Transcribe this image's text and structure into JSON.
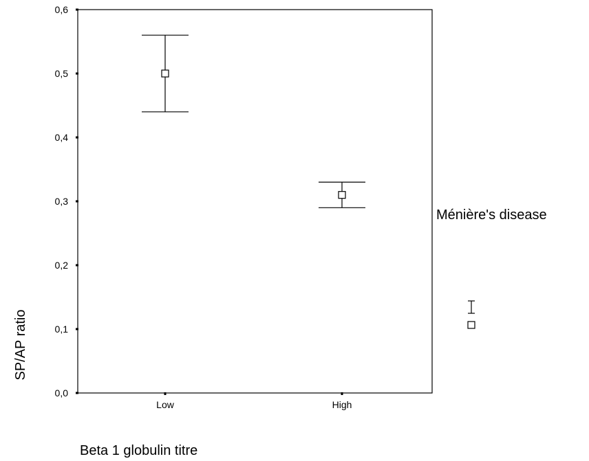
{
  "chart_data": {
    "type": "scatter",
    "title": "",
    "xlabel": "Beta 1 globulin titre",
    "ylabel": "SP/AP ratio",
    "categories": [
      "Low",
      "High"
    ],
    "ylim": [
      0.0,
      0.6
    ],
    "y_ticks": [
      "0,0",
      "0,1",
      "0,2",
      "0,3",
      "0,4",
      "0,5",
      "0,6"
    ],
    "grid": false,
    "legend_position": "right",
    "series": [
      {
        "name": "Ménière's disease",
        "marker": "square-open",
        "error_bars": true,
        "points": [
          {
            "category": "Low",
            "mean": 0.5,
            "lower": 0.44,
            "upper": 0.56
          },
          {
            "category": "High",
            "mean": 0.31,
            "lower": 0.29,
            "upper": 0.33
          }
        ]
      }
    ]
  }
}
